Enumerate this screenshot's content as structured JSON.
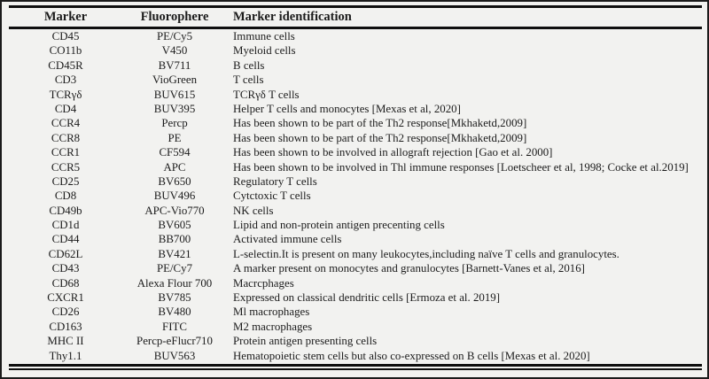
{
  "colors": {
    "background": "#f2f2f0",
    "rule": "#0f0f0f",
    "text": "#1c1c1c",
    "border": "#1b1b1b"
  },
  "table": {
    "headers": [
      "Marker",
      "Fluorophere",
      "Marker identification"
    ],
    "rows": [
      [
        "CD45",
        "PE/Cy5",
        "Immune cells"
      ],
      [
        "CO11b",
        "V450",
        "Myeloid cells"
      ],
      [
        "CD45R",
        "BV711",
        "B cells"
      ],
      [
        "CD3",
        "VioGreen",
        "T cells"
      ],
      [
        "TCRγδ",
        "BUV615",
        "TCRγδ T cells"
      ],
      [
        "CD4",
        "BUV395",
        "Helper T cells and monocytes [Mexas et al, 2020]"
      ],
      [
        "CCR4",
        "Percp",
        "Has been shown to be part of the Th2 response[Mkhaketd,2009]"
      ],
      [
        "CCR8",
        "PE",
        "Has been shown to be part of the Th2 response[Mkhaketd,2009]"
      ],
      [
        "CCR1",
        "CF594",
        "Has been shown to be involved in allograft rejection [Gao et al. 2000]"
      ],
      [
        "CCR5",
        "APC",
        "Has been shown to be involved in Thl immune responses [Loetscheer et al, 1998; Cocke et al.2019]"
      ],
      [
        "CD25",
        "BV650",
        "Regulatory T cells"
      ],
      [
        "CD8",
        "BUV496",
        "Cytctoxic T cells"
      ],
      [
        "CD49b",
        "APC-Vio770",
        "NK cells"
      ],
      [
        "CD1d",
        "BV605",
        "Lipid and non-protein antigen precenting cells"
      ],
      [
        "CD44",
        "BB700",
        "Activated immune cells"
      ],
      [
        "CD62L",
        "BV421",
        "L-selectin.It is present on many leukocytes,including naïve T cells and granulocytes."
      ],
      [
        "CD43",
        "PE/Cy7",
        "A marker present on monocytes and granulocytes [Barnett-Vanes et al, 2016]"
      ],
      [
        "CD68",
        "Alexa Flour 700",
        "Macrcphages"
      ],
      [
        "CXCR1",
        "BV785",
        "Expressed on classical dendritic cells [Ermoza et al. 2019]"
      ],
      [
        "CD26",
        "BV480",
        "Ml macrophages"
      ],
      [
        "CD163",
        "FITC",
        "M2 macrophages"
      ],
      [
        "MHC II",
        "Percp-eFlucr710",
        "Protein antigen presenting cells"
      ],
      [
        "Thy1.1",
        "BUV563",
        "Hematopoietic stem cells but also co-expressed on B cells [Mexas et al. 2020]"
      ]
    ]
  }
}
